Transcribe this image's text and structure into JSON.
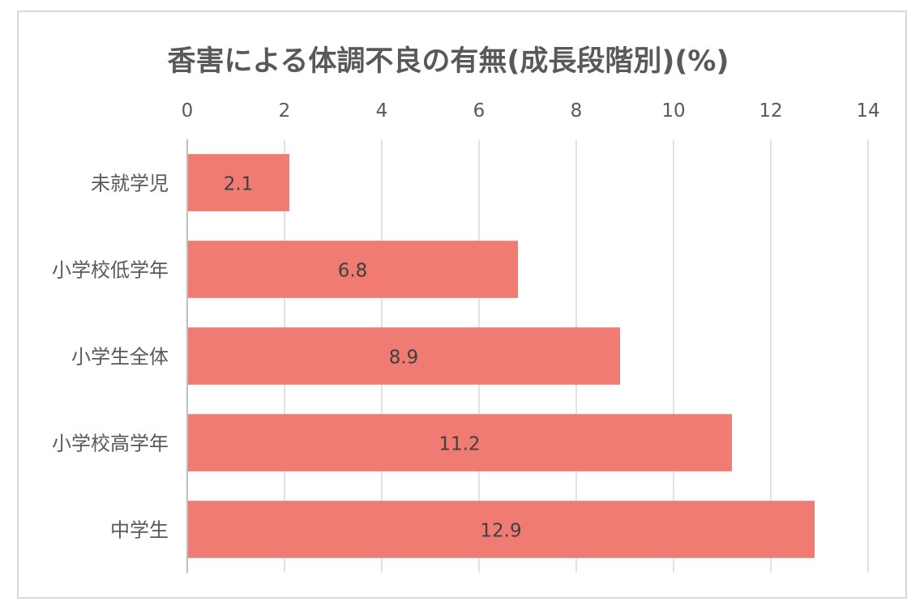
{
  "chart_data": {
    "type": "bar",
    "orientation": "horizontal",
    "title": "香害による体調不良の有無(成長段階別)(%)",
    "categories": [
      "未就学児",
      "小学校低学年",
      "小学生全体",
      "小学校高学年",
      "中学生"
    ],
    "values": [
      2.1,
      6.8,
      8.9,
      11.2,
      12.9
    ],
    "data_labels": [
      "2.1",
      "6.8",
      "8.9",
      "11.2",
      "12.9"
    ],
    "xlim": [
      0,
      14
    ],
    "x_ticks": [
      0,
      2,
      4,
      6,
      8,
      10,
      12,
      14
    ],
    "x_tick_labels": [
      "0",
      "2",
      "4",
      "6",
      "8",
      "10",
      "12",
      "14"
    ],
    "x_axis_position": "top",
    "grid": true,
    "legend": "none",
    "bar_color": "#f07b72"
  }
}
